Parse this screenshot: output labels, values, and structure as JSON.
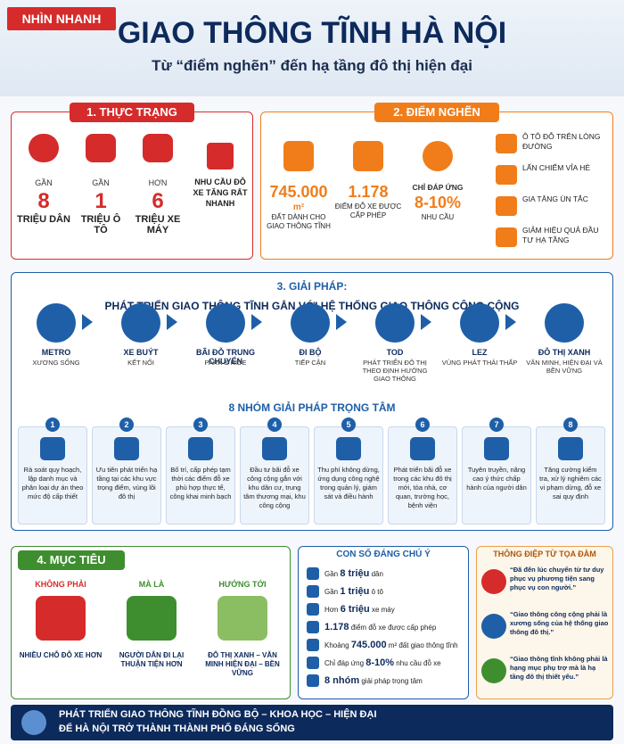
{
  "header": {
    "badge": "NHÌN NHANH",
    "title": "GIAO THÔNG TĨNH HÀ NỘI",
    "subtitle": "Từ “điểm nghẽn” đến hạ tầng đô thị hiện đại"
  },
  "status": {
    "title": "1. THỰC TRẠNG",
    "items": [
      {
        "prefix": "GẦN",
        "number": "8",
        "unit": "TRIỆU DÂN"
      },
      {
        "prefix": "GẦN",
        "number": "1",
        "unit": "TRIỆU Ô TÔ"
      },
      {
        "prefix": "HƠN",
        "number": "6",
        "unit": "TRIỆU XE MÁY"
      }
    ],
    "note": "NHU CẦU ĐỖ XE TĂNG RẤT NHANH"
  },
  "bottleneck": {
    "title": "2. ĐIỂM NGHẼN",
    "stats": [
      {
        "number": "745.000",
        "unit": "m²",
        "label": "ĐẤT DÀNH CHO GIAO THÔNG TĨNH"
      },
      {
        "number": "1.178",
        "label": "ĐIỂM ĐỖ XE ĐƯỢC CẤP PHÉP"
      },
      {
        "prefix": "CHỈ ĐÁP ỨNG",
        "number": "8-10%",
        "label": "NHU CẦU"
      }
    ],
    "effects": [
      "Ô TÔ ĐỖ TRÊN LÒNG ĐƯỜNG",
      "LẤN CHIẾM VỈA HÈ",
      "GIA TĂNG ÙN TẮC",
      "GIẢM HIỆU QUẢ ĐẦU TƯ HẠ TẦNG"
    ]
  },
  "solution": {
    "title": "3. GIẢI PHÁP:",
    "subtitle": "PHÁT TRIỂN GIAO THÔNG TĨNH GẮN VỚI HỆ THỐNG GIAO THÔNG CÔNG CỘNG",
    "flow": [
      {
        "name": "METRO",
        "desc": "XƯƠNG SỐNG"
      },
      {
        "name": "XE BUÝT",
        "desc": "KẾT NỐI"
      },
      {
        "name": "BÃI ĐỖ TRUNG CHUYỂN",
        "desc": "PARK & RIDE"
      },
      {
        "name": "ĐI BỘ",
        "desc": "TIẾP CẬN"
      },
      {
        "name": "TOD",
        "desc": "PHÁT TRIỂN ĐÔ THỊ THEO ĐỊNH HƯỚNG GIAO THÔNG"
      },
      {
        "name": "LEZ",
        "desc": "VÙNG PHÁT THẢI THẤP"
      },
      {
        "name": "ĐÔ THỊ XANH",
        "desc": "VĂN MINH, HIỆN ĐẠI VÀ BỀN VỮNG"
      }
    ],
    "groups_title": "8 NHÓM GIẢI PHÁP TRỌNG TÂM",
    "groups": [
      {
        "number": "1",
        "text": "Rà soát quy hoạch, lập danh mục và phân loại dự án theo mức độ cấp thiết"
      },
      {
        "number": "2",
        "text": "Ưu tiên phát triển hạ tầng tại các khu vực trọng điểm, vùng lõi đô thị"
      },
      {
        "number": "3",
        "text": "Bố trí, cấp phép tạm thời các điểm đỗ xe phù hợp thực tế, công khai minh bạch"
      },
      {
        "number": "4",
        "text": "Đầu tư bãi đỗ xe công cộng gắn với khu dân cư, trung tâm thương mại, khu công cộng"
      },
      {
        "number": "5",
        "text": "Thu phí không dừng, ứng dụng công nghệ trong quản lý, giám sát và điều hành"
      },
      {
        "number": "6",
        "text": "Phát triển bãi đỗ xe trong các khu đô thị mới, tòa nhà, cơ quan, trường học, bệnh viện"
      },
      {
        "number": "7",
        "text": "Tuyên truyền, nâng cao ý thức chấp hành của người dân"
      },
      {
        "number": "8",
        "text": "Tăng cường kiểm tra, xử lý nghiêm các vi phạm dừng, đỗ xe sai quy định"
      }
    ]
  },
  "goal": {
    "title": "4. MỤC TIÊU",
    "columns": [
      {
        "heading": "KHÔNG PHẢI",
        "text": "NHIỀU CHỖ ĐỖ XE HƠN"
      },
      {
        "heading": "MÀ LÀ",
        "text": "NGƯỜI DÂN ĐI LẠI THUẬN TIỆN HƠN"
      },
      {
        "heading": "HƯỚNG TỚI",
        "text": "ĐÔ THỊ XANH – VĂN MINH HIỆN ĐẠI – BỀN VỮNG"
      }
    ]
  },
  "figures": {
    "title": "CON SỐ ĐÁNG CHÚ Ý",
    "rows": [
      {
        "pre": "Gần ",
        "bold": "8 triệu",
        "post": " dân"
      },
      {
        "pre": "Gần ",
        "bold": "1 triệu",
        "post": " ô tô"
      },
      {
        "pre": "Hơn ",
        "bold": "6 triệu",
        "post": " xe máy"
      },
      {
        "bold": "1.178",
        "post": " điểm đỗ xe được cấp phép"
      },
      {
        "pre": "Khoảng ",
        "bold": "745.000",
        "post": " m² đất giao thông tĩnh"
      },
      {
        "pre": "Chỉ đáp ứng ",
        "bold": "8-10%",
        "post": " nhu cầu đỗ xe"
      },
      {
        "bold": "8 nhóm",
        "post": " giải pháp trọng tâm"
      }
    ]
  },
  "messages": {
    "title": "THÔNG ĐIỆP TỪ TỌA ĐÀM",
    "quotes": [
      "“Đã đến lúc chuyển từ tư duy phục vụ phương tiện sang phục vụ con người.”",
      "“Giao thông công cộng phải là xương sống của hệ thống giao thông đô thị.”",
      "“Giao thông tĩnh không phải là hạng mục phụ trợ mà là hạ tầng đô thị thiết yếu.”"
    ]
  },
  "footer": {
    "line1": "PHÁT TRIỂN GIAO THÔNG TĨNH ĐỒNG BỘ – KHOA HỌC – HIỆN ĐẠI",
    "line2": "ĐỂ HÀ NỘI TRỞ THÀNH THÀNH PHỐ ĐÁNG SỐNG"
  }
}
